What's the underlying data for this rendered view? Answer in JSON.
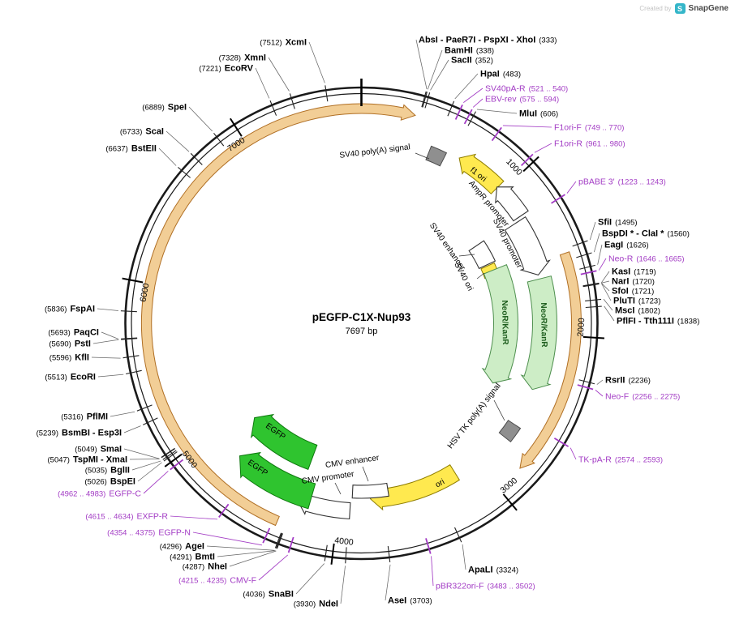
{
  "watermark": {
    "created_by": "Created by",
    "brand": "SnapGene",
    "logo_letter": "S"
  },
  "plasmid": {
    "name": "pEGFP-C1X-Nup93",
    "size_label": "7697 bp"
  },
  "axis": {
    "ticks": [
      "1000",
      "2000",
      "3000",
      "4000",
      "5000",
      "6000",
      "7000"
    ]
  },
  "features": [
    {
      "label": "SV40 poly(A) signal"
    },
    {
      "label": "f1 ori"
    },
    {
      "label": "AmpR promoter"
    },
    {
      "label": "SV40 promoter"
    },
    {
      "label": "SV40 enhancer"
    },
    {
      "label": "SV40 ori"
    },
    {
      "label": "NeoR/KanR"
    },
    {
      "label": "NeoR/KanR"
    },
    {
      "label": "HSV TK poly(A) signal"
    },
    {
      "label": "ori"
    },
    {
      "label": "CMV promoter"
    },
    {
      "label": "CMV enhancer"
    },
    {
      "label": "EGFP"
    },
    {
      "label": "EGFP"
    },
    {
      "label": ""
    },
    {
      "label": ""
    }
  ],
  "enzymes": [
    {
      "name": "XcmI",
      "pos": "(7512)"
    },
    {
      "name": "XmnI",
      "pos": "(7328)"
    },
    {
      "name": "EcoRV",
      "pos": "(7221)"
    },
    {
      "name": "SpeI",
      "pos": "(6889)"
    },
    {
      "name": "ScaI",
      "pos": "(6733)"
    },
    {
      "name": "BstEII",
      "pos": "(6637)"
    },
    {
      "name": "FspAI",
      "pos": "(5836)"
    },
    {
      "name": "PaqCI",
      "pos": "(5693)"
    },
    {
      "name": "PstI",
      "pos": "(5690)"
    },
    {
      "name": "KflI",
      "pos": "(5596)"
    },
    {
      "name": "EcoRI",
      "pos": "(5513)"
    },
    {
      "name": "PflMI",
      "pos": "(5316)"
    },
    {
      "name": "BsmBI - Esp3I",
      "pos": "(5239)"
    },
    {
      "name": "SmaI",
      "pos": "(5049)"
    },
    {
      "name": "TspMI - XmaI",
      "pos": "(5047)"
    },
    {
      "name": "BglII",
      "pos": "(5035)"
    },
    {
      "name": "BspEI",
      "pos": "(5026)"
    },
    {
      "name": "AgeI",
      "pos": "(4296)"
    },
    {
      "name": "BmtI",
      "pos": "(4291)"
    },
    {
      "name": "NheI",
      "pos": "(4287)"
    },
    {
      "name": "SnaBI",
      "pos": "(4036)"
    },
    {
      "name": "NdeI",
      "pos": "(3930)"
    },
    {
      "name": "AseI",
      "pos": "(3703)"
    },
    {
      "name": "ApaLI",
      "pos": "(3324)"
    },
    {
      "name": "RsrII",
      "pos": "(2236)"
    },
    {
      "name": "PflFI - Tth111I",
      "pos": "(1838)"
    },
    {
      "name": "MscI",
      "pos": "(1802)"
    },
    {
      "name": "PluTI",
      "pos": "(1723)"
    },
    {
      "name": "SfoI",
      "pos": "(1721)"
    },
    {
      "name": "NarI",
      "pos": "(1720)"
    },
    {
      "name": "KasI",
      "pos": "(1719)"
    },
    {
      "name": "EagI",
      "pos": "(1626)"
    },
    {
      "name": "BspDI * - ClaI *",
      "pos": "(1560)"
    },
    {
      "name": "SfiI",
      "pos": "(1495)"
    },
    {
      "name": "MluI",
      "pos": "(606)"
    },
    {
      "name": "HpaI",
      "pos": "(483)"
    },
    {
      "name": "SacII",
      "pos": "(352)"
    },
    {
      "name": "BamHI",
      "pos": "(338)"
    },
    {
      "name": "AbsI - PaeR7I - PspXI - XhoI",
      "pos": "(333)"
    }
  ],
  "primers": [
    {
      "name": "SV40pA-R",
      "range": "(521 .. 540)"
    },
    {
      "name": "EBV-rev",
      "range": "(575 .. 594)"
    },
    {
      "name": "F1ori-F",
      "range": "(749 .. 770)"
    },
    {
      "name": "F1ori-R",
      "range": "(961 .. 980)"
    },
    {
      "name": "pBABE 3'",
      "range": "(1223 .. 1243)"
    },
    {
      "name": "Neo-R",
      "range": "(1646 .. 1665)"
    },
    {
      "name": "Neo-F",
      "range": "(2256 .. 2275)"
    },
    {
      "name": "TK-pA-R",
      "range": "(2574 .. 2593)"
    },
    {
      "name": "pBR322ori-F",
      "range": "(3483 .. 3502)"
    },
    {
      "name": "CMV-F",
      "range": "(4215 .. 4235)"
    },
    {
      "name": "EGFP-N",
      "range": "(4354 .. 4375)"
    },
    {
      "name": "EXFP-R",
      "range": "(4615 .. 4634)"
    },
    {
      "name": "EGFP-C",
      "range": "(4962 .. 4983)"
    }
  ],
  "colors": {
    "backbone": "#1a1a1a",
    "enzyme_label": "#000000",
    "primer_label": "#A23BC4",
    "leader_enzyme": "#666666",
    "leader_feature": "#333333",
    "feature_yellow": "#FFE94F",
    "feature_yellow_stroke": "#8f7d00",
    "feature_white": "#FFFFFF",
    "feature_white_stroke": "#333333",
    "feature_pale_green": "#CDEDC6",
    "feature_pale_green_stroke": "#4e8f4e",
    "feature_green": "#2FC42F",
    "feature_green_stroke": "#0E7A0E",
    "feature_gray": "#8F8F8F",
    "feature_gray_stroke": "#4d4d4d",
    "feature_orange_fill": "#F2CE96",
    "feature_orange_stroke": "#B06F24",
    "neo_label_green": "#1C5C1C",
    "brand_teal": "#35B6C9"
  }
}
